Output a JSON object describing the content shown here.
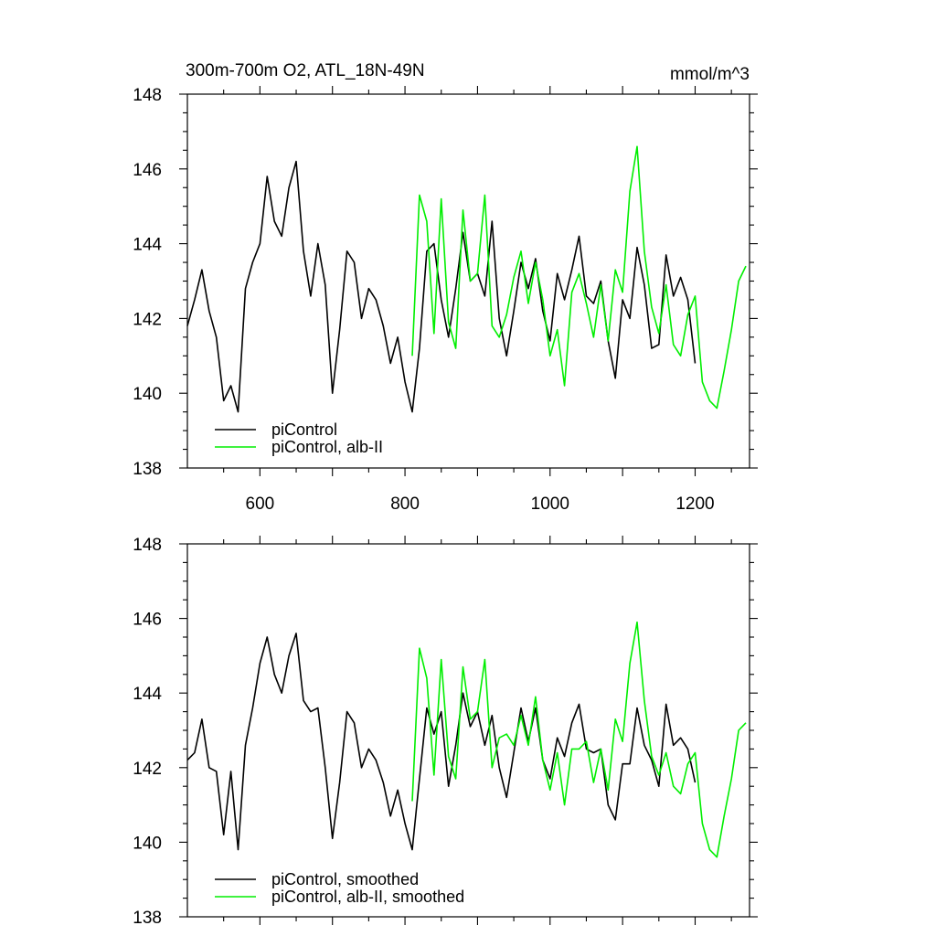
{
  "chart_data": [
    {
      "type": "line",
      "title": "300m-700m O2, ATL_18N-49N",
      "units": "mmol/m^3",
      "xlim": [
        500,
        1275
      ],
      "ylim": [
        138,
        148
      ],
      "x_ticks": [
        "600",
        "800",
        "1000",
        "1200"
      ],
      "y_ticks": [
        "138",
        "140",
        "142",
        "144",
        "146",
        "148"
      ],
      "grid": false,
      "legend_position": "bottom-left",
      "series": [
        {
          "name": "piControl",
          "color": "#000000",
          "x": [
            500,
            510,
            520,
            530,
            540,
            550,
            560,
            570,
            580,
            590,
            600,
            610,
            620,
            630,
            640,
            650,
            660,
            670,
            680,
            690,
            700,
            710,
            720,
            730,
            740,
            750,
            760,
            770,
            780,
            790,
            800,
            810,
            820,
            830,
            840,
            850,
            860,
            870,
            880,
            890,
            900,
            910,
            920,
            930,
            940,
            950,
            960,
            970,
            980,
            990,
            1000,
            1010,
            1020,
            1030,
            1040,
            1050,
            1060,
            1070,
            1080,
            1090,
            1100,
            1110,
            1120,
            1130,
            1140,
            1150,
            1160,
            1170,
            1180,
            1190,
            1200
          ],
          "values": [
            141.8,
            142.5,
            143.3,
            142.2,
            141.5,
            139.8,
            140.2,
            139.5,
            142.8,
            143.5,
            144.0,
            145.8,
            144.6,
            144.2,
            145.5,
            146.2,
            143.8,
            142.6,
            144.0,
            142.9,
            140.0,
            141.7,
            143.8,
            143.5,
            142.0,
            142.8,
            142.5,
            141.8,
            140.8,
            141.5,
            140.3,
            139.5,
            141.2,
            143.8,
            144.0,
            142.5,
            141.5,
            142.8,
            144.3,
            143.0,
            143.2,
            142.6,
            144.6,
            142.0,
            141.0,
            142.2,
            143.5,
            142.8,
            143.6,
            142.2,
            141.4,
            143.2,
            142.5,
            143.3,
            144.2,
            142.6,
            142.4,
            143.0,
            141.4,
            140.4,
            142.5,
            142.0,
            143.9,
            142.9,
            141.2,
            141.3,
            143.7,
            142.6,
            143.1,
            142.5,
            140.8
          ]
        },
        {
          "name": "piControl, alb-II",
          "color": "#00ee00",
          "x": [
            810,
            820,
            830,
            840,
            850,
            860,
            870,
            880,
            890,
            900,
            910,
            920,
            930,
            940,
            950,
            960,
            970,
            980,
            990,
            1000,
            1010,
            1020,
            1030,
            1040,
            1050,
            1060,
            1070,
            1080,
            1090,
            1100,
            1110,
            1120,
            1130,
            1140,
            1150,
            1160,
            1170,
            1180,
            1190,
            1200,
            1210,
            1220,
            1230,
            1240,
            1250,
            1260,
            1270
          ],
          "values": [
            141.0,
            145.3,
            144.6,
            141.6,
            145.2,
            141.9,
            141.2,
            144.9,
            143.0,
            143.2,
            145.3,
            141.8,
            141.5,
            142.1,
            143.1,
            143.8,
            142.4,
            143.5,
            142.5,
            141.0,
            141.7,
            140.2,
            142.7,
            143.2,
            142.4,
            141.5,
            142.9,
            141.4,
            143.3,
            142.7,
            145.4,
            146.6,
            143.8,
            142.3,
            141.6,
            142.9,
            141.3,
            141.0,
            142.1,
            142.6,
            140.3,
            139.8,
            139.6,
            140.6,
            141.7,
            143.0,
            143.4
          ]
        }
      ]
    },
    {
      "type": "line",
      "title": "",
      "units": "",
      "xlim": [
        500,
        1275
      ],
      "ylim": [
        138,
        148
      ],
      "x_ticks": [],
      "y_ticks": [
        "138",
        "140",
        "142",
        "144",
        "146",
        "148"
      ],
      "grid": false,
      "legend_position": "bottom-left",
      "series": [
        {
          "name": "piControl, smoothed",
          "color": "#000000",
          "x": [
            500,
            510,
            520,
            530,
            540,
            550,
            560,
            570,
            580,
            590,
            600,
            610,
            620,
            630,
            640,
            650,
            660,
            670,
            680,
            690,
            700,
            710,
            720,
            730,
            740,
            750,
            760,
            770,
            780,
            790,
            800,
            810,
            820,
            830,
            840,
            850,
            860,
            870,
            880,
            890,
            900,
            910,
            920,
            930,
            940,
            950,
            960,
            970,
            980,
            990,
            1000,
            1010,
            1020,
            1030,
            1040,
            1050,
            1060,
            1070,
            1080,
            1090,
            1100,
            1110,
            1120,
            1130,
            1140,
            1150,
            1160,
            1170,
            1180,
            1190,
            1200
          ],
          "values": [
            142.2,
            142.4,
            143.3,
            142.0,
            141.9,
            140.2,
            141.9,
            139.8,
            142.6,
            143.6,
            144.8,
            145.5,
            144.5,
            144.0,
            145.0,
            145.6,
            143.8,
            143.5,
            143.6,
            142.0,
            140.1,
            141.6,
            143.5,
            143.2,
            142.0,
            142.5,
            142.2,
            141.6,
            140.7,
            141.4,
            140.5,
            139.8,
            141.7,
            143.6,
            142.9,
            143.5,
            141.5,
            142.6,
            144.0,
            143.1,
            143.5,
            142.6,
            143.4,
            142.0,
            141.2,
            142.4,
            143.6,
            142.7,
            143.6,
            142.2,
            141.7,
            142.8,
            142.3,
            143.2,
            143.7,
            142.5,
            142.4,
            142.5,
            141.0,
            140.6,
            142.1,
            142.1,
            143.6,
            142.6,
            142.2,
            141.5,
            143.7,
            142.6,
            142.8,
            142.5,
            141.6
          ]
        },
        {
          "name": "piControl, alb-II, smoothed",
          "color": "#00ee00",
          "x": [
            810,
            820,
            830,
            840,
            850,
            860,
            870,
            880,
            890,
            900,
            910,
            920,
            930,
            940,
            950,
            960,
            970,
            980,
            990,
            1000,
            1010,
            1020,
            1030,
            1040,
            1050,
            1060,
            1070,
            1080,
            1090,
            1100,
            1110,
            1120,
            1130,
            1140,
            1150,
            1160,
            1170,
            1180,
            1190,
            1200,
            1210,
            1220,
            1230,
            1240,
            1250,
            1260,
            1270
          ],
          "values": [
            141.1,
            145.2,
            144.4,
            141.8,
            144.9,
            142.3,
            141.7,
            144.7,
            143.3,
            143.5,
            144.9,
            142.0,
            142.8,
            142.9,
            142.6,
            143.4,
            142.6,
            143.9,
            142.2,
            141.4,
            142.4,
            141.0,
            142.5,
            142.5,
            142.7,
            141.6,
            142.5,
            141.4,
            143.3,
            142.7,
            144.8,
            145.9,
            143.8,
            142.3,
            141.8,
            142.4,
            141.5,
            141.3,
            142.1,
            142.4,
            140.5,
            139.8,
            139.6,
            140.7,
            141.7,
            143.0,
            143.2
          ]
        }
      ]
    }
  ]
}
